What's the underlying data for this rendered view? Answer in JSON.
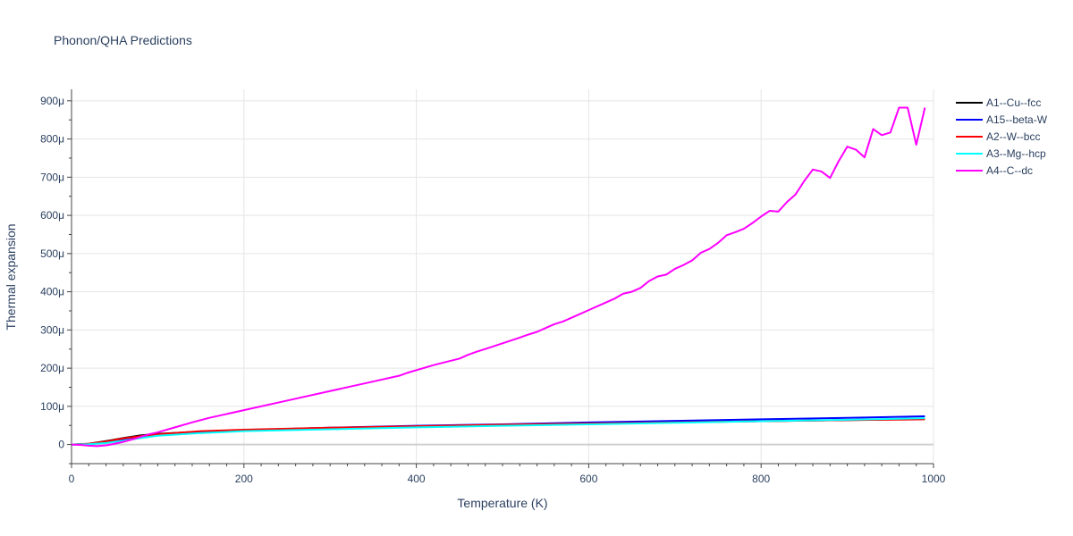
{
  "chart_data": {
    "type": "line",
    "title": "Phonon/QHA Predictions",
    "xlabel": "Temperature (K)",
    "ylabel": "Thermal expansion",
    "xlim": [
      0,
      1000
    ],
    "ylim": [
      -5e-05,
      0.00093
    ],
    "x_ticks": [
      0,
      200,
      400,
      600,
      800,
      1000
    ],
    "x_tick_labels": [
      "0",
      "200",
      "400",
      "600",
      "800",
      "1000"
    ],
    "y_ticks": [
      0,
      0.0001,
      0.0002,
      0.0003,
      0.0004,
      0.0005,
      0.0006,
      0.0007,
      0.0008,
      0.0009
    ],
    "y_tick_labels": [
      "0",
      "100μ",
      "200μ",
      "300μ",
      "400μ",
      "500μ",
      "600μ",
      "700μ",
      "800μ",
      "900μ"
    ],
    "grid": true,
    "legend_position": "top-right",
    "series": [
      {
        "name": "A1--Cu--fcc",
        "color": "#000000",
        "x": [
          0,
          20,
          40,
          60,
          80,
          100,
          150,
          200,
          300,
          400,
          500,
          600,
          700,
          800,
          900,
          990
        ],
        "y": [
          0,
          2e-06,
          9e-06,
          1.7e-05,
          2.4e-05,
          2.8e-05,
          3.4e-05,
          3.8e-05,
          4.3e-05,
          4.7e-05,
          5.1e-05,
          5.5e-05,
          5.8e-05,
          6.1e-05,
          6.4e-05,
          6.7e-05
        ]
      },
      {
        "name": "A15--beta-W",
        "color": "#0000ff",
        "x": [
          0,
          20,
          40,
          60,
          80,
          100,
          150,
          200,
          300,
          400,
          500,
          600,
          700,
          800,
          900,
          990
        ],
        "y": [
          0,
          1e-06,
          5e-06,
          1.2e-05,
          1.9e-05,
          2.5e-05,
          3.3e-05,
          3.8e-05,
          4.4e-05,
          4.9e-05,
          5.3e-05,
          5.8e-05,
          6.2e-05,
          6.6e-05,
          7e-05,
          7.4e-05
        ]
      },
      {
        "name": "A2--W--bcc",
        "color": "#ff0000",
        "x": [
          0,
          20,
          40,
          60,
          80,
          100,
          150,
          200,
          300,
          400,
          500,
          600,
          700,
          800,
          900,
          990
        ],
        "y": [
          0,
          2e-06,
          8e-06,
          1.6e-05,
          2.2e-05,
          2.7e-05,
          3.5e-05,
          3.9e-05,
          4.4e-05,
          4.8e-05,
          5.2e-05,
          5.5e-05,
          5.8e-05,
          6.1e-05,
          6.4e-05,
          6.6e-05
        ]
      },
      {
        "name": "A3--Mg--hcp",
        "color": "#00ffff",
        "x": [
          0,
          20,
          40,
          60,
          80,
          100,
          150,
          200,
          300,
          400,
          500,
          600,
          700,
          800,
          900,
          990
        ],
        "y": [
          0,
          1e-06,
          4e-06,
          1e-05,
          1.7e-05,
          2.3e-05,
          3e-05,
          3.5e-05,
          4e-05,
          4.5e-05,
          4.9e-05,
          5.3e-05,
          5.7e-05,
          6.1e-05,
          6.5e-05,
          6.9e-05
        ]
      },
      {
        "name": "A4--C--dc",
        "color": "#ff00ff",
        "x": [
          0,
          10,
          20,
          30,
          40,
          50,
          60,
          70,
          80,
          90,
          100,
          120,
          140,
          160,
          180,
          200,
          250,
          300,
          350,
          380,
          390,
          420,
          450,
          460,
          470,
          480,
          500,
          520,
          530,
          540,
          550,
          560,
          570,
          590,
          600,
          620,
          630,
          640,
          650,
          660,
          670,
          680,
          690,
          700,
          710,
          720,
          730,
          740,
          750,
          760,
          770,
          780,
          790,
          800,
          810,
          820,
          830,
          840,
          850,
          860,
          870,
          880,
          890,
          900,
          910,
          920,
          930,
          940,
          950,
          960,
          970,
          980,
          990
        ],
        "y": [
          0,
          -1e-06,
          -3e-06,
          -4e-06,
          -2e-06,
          2e-06,
          7e-06,
          1.3e-05,
          2e-05,
          2.7e-05,
          3.2e-05,
          4.5e-05,
          5.8e-05,
          7e-05,
          8e-05,
          9e-05,
          0.000115,
          0.00014,
          0.000165,
          0.00018,
          0.000188,
          0.000208,
          0.000225,
          0.000235,
          0.000243,
          0.00025,
          0.000265,
          0.00028,
          0.000288,
          0.000295,
          0.000305,
          0.000315,
          0.000322,
          0.000342,
          0.000352,
          0.000372,
          0.000382,
          0.000395,
          0.0004,
          0.00041,
          0.000428,
          0.00044,
          0.000445,
          0.00046,
          0.00047,
          0.000482,
          0.000502,
          0.000512,
          0.000528,
          0.000548,
          0.000556,
          0.000565,
          0.00058,
          0.000597,
          0.000612,
          0.00061,
          0.000635,
          0.000655,
          0.00069,
          0.00072,
          0.000715,
          0.000698,
          0.000742,
          0.00078,
          0.000772,
          0.000752,
          0.000826,
          0.00081,
          0.000817,
          0.000882,
          0.000882,
          0.000785,
          0.000882
        ]
      }
    ]
  }
}
